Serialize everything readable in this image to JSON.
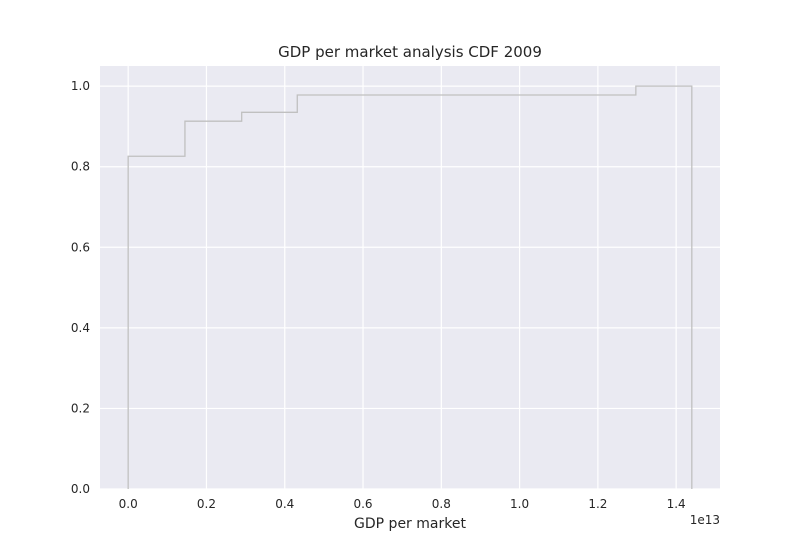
{
  "chart_data": {
    "type": "line",
    "drawstyle": "steps-post",
    "title": "GDP per market analysis CDF 2009",
    "xlabel": "GDP per market",
    "ylabel": "",
    "x_offset_label": "1e13",
    "xlim": [
      -0.072,
      1.512
    ],
    "ylim": [
      0.0,
      1.05
    ],
    "xticks": [
      0.0,
      0.2,
      0.4,
      0.6,
      0.8,
      1.0,
      1.2,
      1.4
    ],
    "xtick_labels": [
      "0.0",
      "0.2",
      "0.4",
      "0.6",
      "0.8",
      "1.0",
      "1.2",
      "1.4"
    ],
    "yticks": [
      0.0,
      0.2,
      0.4,
      0.6,
      0.8,
      1.0
    ],
    "ytick_labels": [
      "0.0",
      "0.2",
      "0.4",
      "0.6",
      "0.8",
      "1.0"
    ],
    "grid": true,
    "background": "#eaeaf2",
    "grid_color": "#ffffff",
    "line_color": "#c0c0c0",
    "series": [
      {
        "x": [
          0.0,
          0.0,
          0.145,
          0.29,
          0.432,
          1.297,
          1.44,
          1.44
        ],
        "y": [
          0.0,
          0.826,
          0.913,
          0.935,
          0.978,
          1.0,
          1.0,
          0.0
        ]
      }
    ]
  }
}
